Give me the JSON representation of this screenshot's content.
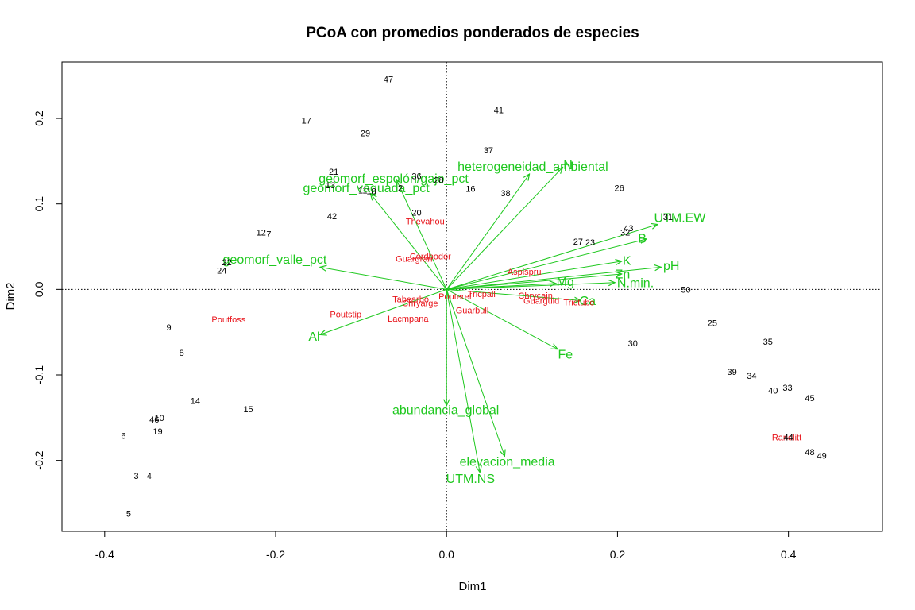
{
  "chart_data": {
    "type": "scatter",
    "title": "PCoA con promedios ponderados de especies",
    "xlabel": "Dim1",
    "ylabel": "Dim2",
    "xlim": [
      -0.45,
      0.51
    ],
    "ylim": [
      -0.283,
      0.266
    ],
    "xticks": [
      -0.4,
      -0.2,
      0.0,
      0.2,
      0.4
    ],
    "yticks": [
      -0.2,
      -0.1,
      0.0,
      0.1,
      0.2
    ],
    "xtick_labels": [
      "-0.4",
      "-0.2",
      "0.0",
      "0.2",
      "0.4"
    ],
    "ytick_labels": [
      "-0.2",
      "-0.1",
      "0.0",
      "0.1",
      "0.2"
    ],
    "reference_lines": {
      "x": 0,
      "y": 0,
      "style": "dotted"
    },
    "colors": {
      "sites": "#000000",
      "species": "#e8141b",
      "vectors": "#1ec81e"
    },
    "sites": [
      {
        "label": "47",
        "x": -0.068,
        "y": 0.245
      },
      {
        "label": "41",
        "x": 0.061,
        "y": 0.209
      },
      {
        "label": "17",
        "x": -0.164,
        "y": 0.197
      },
      {
        "label": "29",
        "x": -0.095,
        "y": 0.182
      },
      {
        "label": "37",
        "x": 0.049,
        "y": 0.162
      },
      {
        "label": "21",
        "x": -0.132,
        "y": 0.137
      },
      {
        "label": "36",
        "x": -0.035,
        "y": 0.132
      },
      {
        "label": "28",
        "x": -0.009,
        "y": 0.127
      },
      {
        "label": "13",
        "x": -0.136,
        "y": 0.121
      },
      {
        "label": "16",
        "x": 0.028,
        "y": 0.117
      },
      {
        "label": "26",
        "x": 0.202,
        "y": 0.118
      },
      {
        "label": "2",
        "x": -0.054,
        "y": 0.118
      },
      {
        "label": "11",
        "x": -0.098,
        "y": 0.115
      },
      {
        "label": "18",
        "x": -0.088,
        "y": 0.114
      },
      {
        "label": "38",
        "x": 0.069,
        "y": 0.112
      },
      {
        "label": "20",
        "x": -0.035,
        "y": 0.089
      },
      {
        "label": "31",
        "x": 0.259,
        "y": 0.084
      },
      {
        "label": "42",
        "x": -0.134,
        "y": 0.085
      },
      {
        "label": "43",
        "x": 0.213,
        "y": 0.071
      },
      {
        "label": "12",
        "x": -0.217,
        "y": 0.066
      },
      {
        "label": "32",
        "x": 0.209,
        "y": 0.066
      },
      {
        "label": "7",
        "x": -0.208,
        "y": 0.064
      },
      {
        "label": "27",
        "x": 0.154,
        "y": 0.055
      },
      {
        "label": "23",
        "x": 0.168,
        "y": 0.054
      },
      {
        "label": "22",
        "x": -0.257,
        "y": 0.031
      },
      {
        "label": "24",
        "x": -0.263,
        "y": 0.021
      },
      {
        "label": "50",
        "x": 0.28,
        "y": -0.001
      },
      {
        "label": "25",
        "x": 0.311,
        "y": -0.04
      },
      {
        "label": "35",
        "x": 0.376,
        "y": -0.062
      },
      {
        "label": "30",
        "x": 0.218,
        "y": -0.064
      },
      {
        "label": "9",
        "x": -0.325,
        "y": -0.045
      },
      {
        "label": "8",
        "x": -0.31,
        "y": -0.075
      },
      {
        "label": "39",
        "x": 0.334,
        "y": -0.097
      },
      {
        "label": "34",
        "x": 0.357,
        "y": -0.102
      },
      {
        "label": "33",
        "x": 0.399,
        "y": -0.116
      },
      {
        "label": "40",
        "x": 0.382,
        "y": -0.119
      },
      {
        "label": "45",
        "x": 0.425,
        "y": -0.128
      },
      {
        "label": "14",
        "x": -0.294,
        "y": -0.131
      },
      {
        "label": "15",
        "x": -0.232,
        "y": -0.141
      },
      {
        "label": "46",
        "x": -0.342,
        "y": -0.153
      },
      {
        "label": "10",
        "x": -0.336,
        "y": -0.151
      },
      {
        "label": "19",
        "x": -0.338,
        "y": -0.167
      },
      {
        "label": "6",
        "x": -0.378,
        "y": -0.172
      },
      {
        "label": "44",
        "x": 0.4,
        "y": -0.174
      },
      {
        "label": "48",
        "x": 0.425,
        "y": -0.191
      },
      {
        "label": "49",
        "x": 0.439,
        "y": -0.195
      },
      {
        "label": "3",
        "x": -0.363,
        "y": -0.219
      },
      {
        "label": "4",
        "x": -0.348,
        "y": -0.219
      },
      {
        "label": "5",
        "x": -0.372,
        "y": -0.263
      }
    ],
    "species": [
      {
        "label": "Thevahou",
        "x": -0.025,
        "y": 0.079
      },
      {
        "label": "Cordbodor",
        "x": -0.019,
        "y": 0.038
      },
      {
        "label": "Guargran",
        "x": -0.038,
        "y": 0.035
      },
      {
        "label": "Aspispru",
        "x": 0.091,
        "y": 0.02
      },
      {
        "label": "Tricpall",
        "x": 0.041,
        "y": -0.006
      },
      {
        "label": "Pouteref",
        "x": 0.01,
        "y": -0.009
      },
      {
        "label": "Chrycain",
        "x": 0.104,
        "y": -0.008
      },
      {
        "label": "Tabearbo",
        "x": -0.042,
        "y": -0.012
      },
      {
        "label": "Guarguid",
        "x": 0.111,
        "y": -0.014
      },
      {
        "label": "Trictube",
        "x": 0.155,
        "y": -0.016
      },
      {
        "label": "Chryarge",
        "x": -0.031,
        "y": -0.017
      },
      {
        "label": "Guarbull",
        "x": 0.03,
        "y": -0.025
      },
      {
        "label": "Poutstip",
        "x": -0.118,
        "y": -0.03
      },
      {
        "label": "Poutfoss",
        "x": -0.255,
        "y": -0.036
      },
      {
        "label": "Lacmpana",
        "x": -0.045,
        "y": -0.035
      },
      {
        "label": "Randlitt",
        "x": 0.398,
        "y": -0.174
      }
    ],
    "vectors": [
      {
        "label": "N",
        "x": 0.136,
        "y": 0.143,
        "lx": 0.142,
        "ly": 0.145
      },
      {
        "label": "heterogeneidad_ambiental",
        "x": 0.097,
        "y": 0.135,
        "lx": 0.101,
        "ly": 0.143
      },
      {
        "label": "geomorf_espolón/gajo_pct",
        "x": -0.059,
        "y": 0.129,
        "lx": -0.062,
        "ly": 0.129
      },
      {
        "label": "geomorf_vaguada_pct",
        "x": -0.089,
        "y": 0.112,
        "lx": -0.094,
        "ly": 0.118
      },
      {
        "label": "UTM.EW",
        "x": 0.247,
        "y": 0.076,
        "lx": 0.273,
        "ly": 0.083
      },
      {
        "label": "B",
        "x": 0.234,
        "y": 0.059,
        "lx": 0.229,
        "ly": 0.059
      },
      {
        "label": "K",
        "x": 0.205,
        "y": 0.033,
        "lx": 0.211,
        "ly": 0.033
      },
      {
        "label": "pH",
        "x": 0.251,
        "y": 0.026,
        "lx": 0.263,
        "ly": 0.027
      },
      {
        "label": "Zn",
        "x": 0.205,
        "y": 0.018,
        "lx": 0.206,
        "ly": 0.017
      },
      {
        "label": "N.min.",
        "x": 0.197,
        "y": 0.008,
        "lx": 0.221,
        "ly": 0.007
      },
      {
        "label": "Mg",
        "x": 0.128,
        "y": 0.007,
        "lx": 0.139,
        "ly": 0.008
      },
      {
        "label": "Ca",
        "x": 0.157,
        "y": -0.013,
        "lx": 0.165,
        "ly": -0.014
      },
      {
        "label": "Fe",
        "x": 0.13,
        "y": -0.07,
        "lx": 0.139,
        "ly": -0.077
      },
      {
        "label": "geomorf_valle_pct",
        "x": -0.148,
        "y": 0.026,
        "lx": -0.201,
        "ly": 0.034
      },
      {
        "label": "Al",
        "x": -0.148,
        "y": -0.053,
        "lx": -0.155,
        "ly": -0.056
      },
      {
        "label": "abundancia_global",
        "x": 0.0,
        "y": -0.136,
        "lx": -0.001,
        "ly": -0.142
      },
      {
        "label": "elevacion_media",
        "x": 0.068,
        "y": -0.195,
        "lx": 0.071,
        "ly": -0.202
      },
      {
        "label": "UTM.NS",
        "x": 0.039,
        "y": -0.214,
        "lx": 0.028,
        "ly": -0.222
      }
    ]
  }
}
